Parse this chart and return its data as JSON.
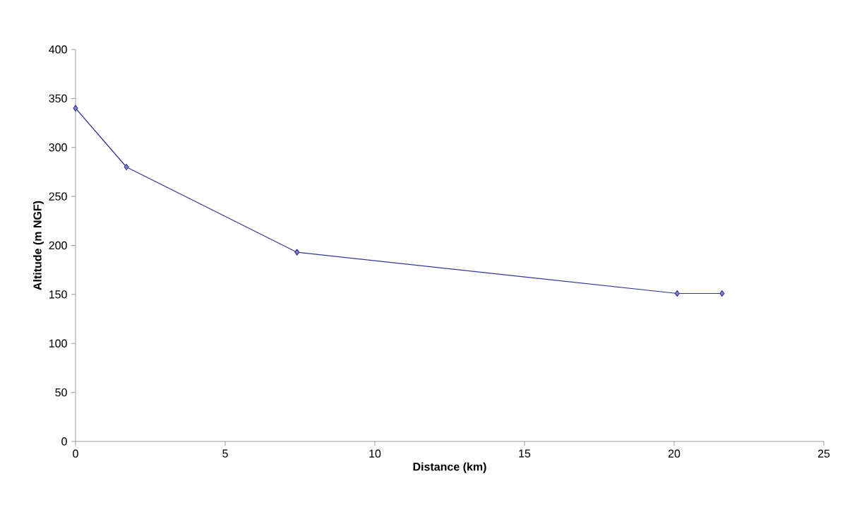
{
  "chart_data": {
    "type": "line",
    "xlabel": "Distance (km)",
    "ylabel": "Altitude (m NGF)",
    "x": [
      0,
      1.7,
      7.4,
      20.1,
      21.6
    ],
    "series": [
      {
        "color": "#333399",
        "values": [
          340,
          280,
          193,
          151,
          151
        ]
      }
    ],
    "xlim": [
      0,
      25
    ],
    "xticks": [
      0,
      5,
      10,
      15,
      20,
      25
    ],
    "ylim": [
      0,
      400
    ],
    "yticks": [
      0,
      50,
      100,
      150,
      200,
      250,
      300,
      350,
      400
    ],
    "marker": "diamond",
    "line_style": "solid",
    "grid": false
  }
}
